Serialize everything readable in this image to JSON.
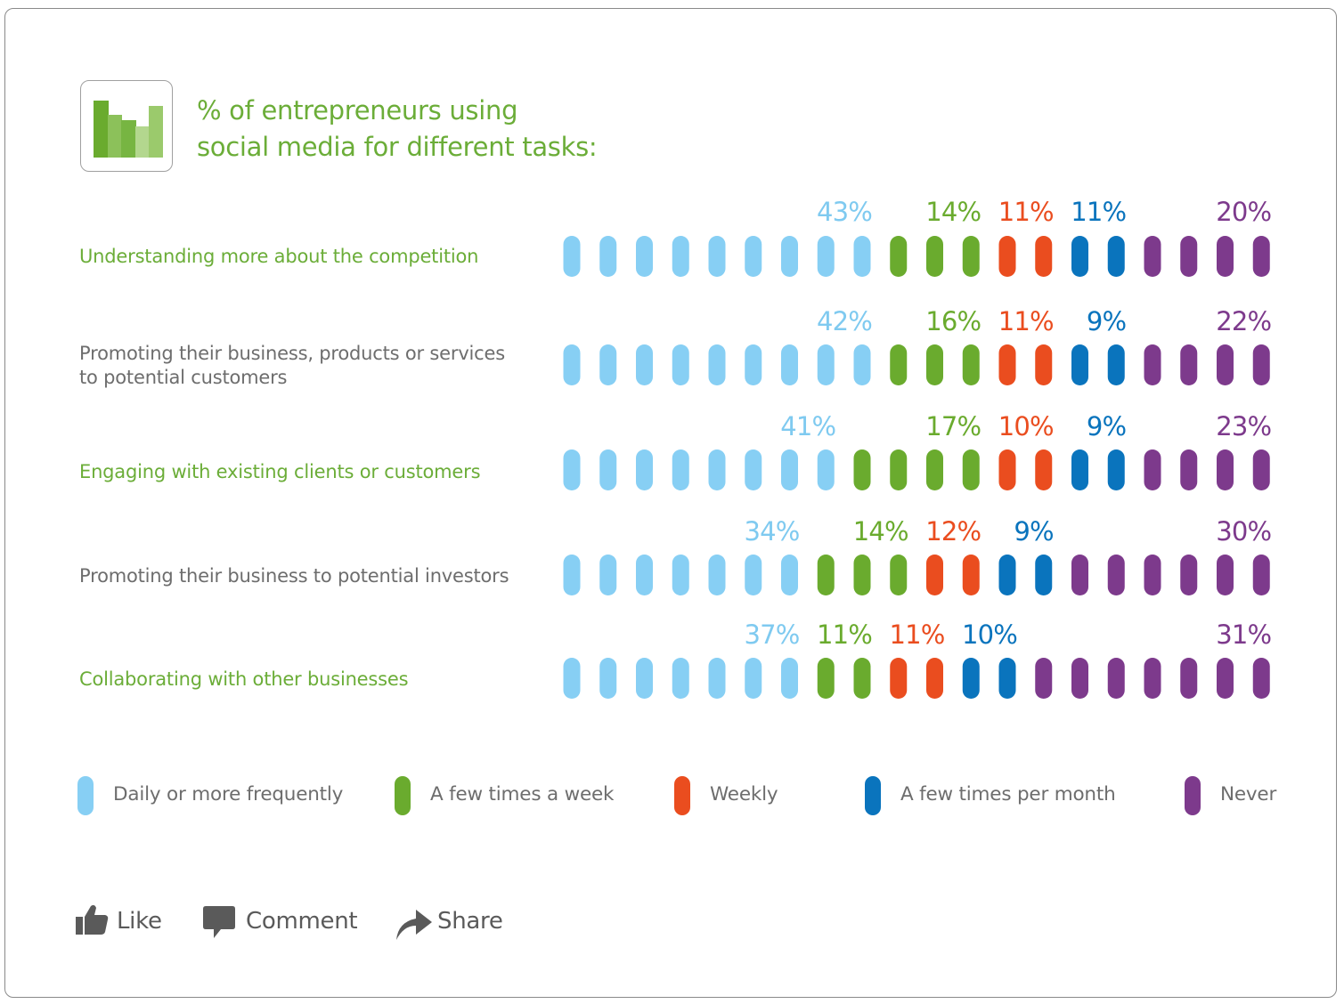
{
  "title_lines": [
    "% of entrepreneurs using",
    "social media for different tasks:"
  ],
  "chart_data": {
    "type": "bar",
    "subtype": "stacked-horizontal-pictogram",
    "unit": "%",
    "series": [
      {
        "name": "Daily or more frequently",
        "color": "#87cff4",
        "values": [
          43,
          42,
          41,
          34,
          37
        ],
        "labels": [
          "43%",
          "42%",
          "41%",
          "34%",
          "37%"
        ]
      },
      {
        "name": "A few times a week",
        "color": "#6aab2e",
        "values": [
          14,
          16,
          17,
          14,
          11
        ],
        "labels": [
          "14%",
          "16%",
          "17%",
          "14%",
          "11%"
        ]
      },
      {
        "name": "Weekly",
        "color": "#ea4d1f",
        "values": [
          11,
          11,
          10,
          12,
          11
        ],
        "labels": [
          "11%",
          "11%",
          "10%",
          "12%",
          "11%"
        ]
      },
      {
        "name": "A few times per month",
        "color": "#0a74bd",
        "values": [
          11,
          9,
          9,
          9,
          10
        ],
        "labels": [
          "11%",
          "9%",
          "9%",
          "9%",
          "10%"
        ]
      },
      {
        "name": "Never",
        "color": "#7d3a8c",
        "values": [
          20,
          22,
          23,
          30,
          31
        ],
        "labels": [
          "20%",
          "22%",
          "23%",
          "30%",
          "31%"
        ]
      }
    ],
    "categories": [
      {
        "lines": [
          "Understanding more about the competition"
        ],
        "color": "#6bad38",
        "pills": [
          9,
          3,
          2,
          2,
          4
        ]
      },
      {
        "lines": [
          "Promoting their business, products or services",
          "to potential customers"
        ],
        "color": "#6d6d6d",
        "pills": [
          9,
          3,
          2,
          2,
          4
        ]
      },
      {
        "lines": [
          "Engaging with existing clients or customers"
        ],
        "color": "#6bad38",
        "pills": [
          8,
          4,
          2,
          2,
          4
        ]
      },
      {
        "lines": [
          "Promoting their business to potential investors"
        ],
        "color": "#6d6d6d",
        "pills": [
          7,
          3,
          2,
          2,
          6
        ]
      },
      {
        "lines": [
          "Collaborating with other businesses"
        ],
        "color": "#6bad38",
        "pills": [
          7,
          2,
          2,
          2,
          7
        ]
      }
    ]
  },
  "actions": {
    "like": "Like",
    "comment": "Comment",
    "share": "Share"
  },
  "icons": {
    "logo": "bar-chart-icon",
    "like": "thumbs-up-icon",
    "comment": "speech-bubble-icon",
    "share": "share-arrow-icon"
  }
}
